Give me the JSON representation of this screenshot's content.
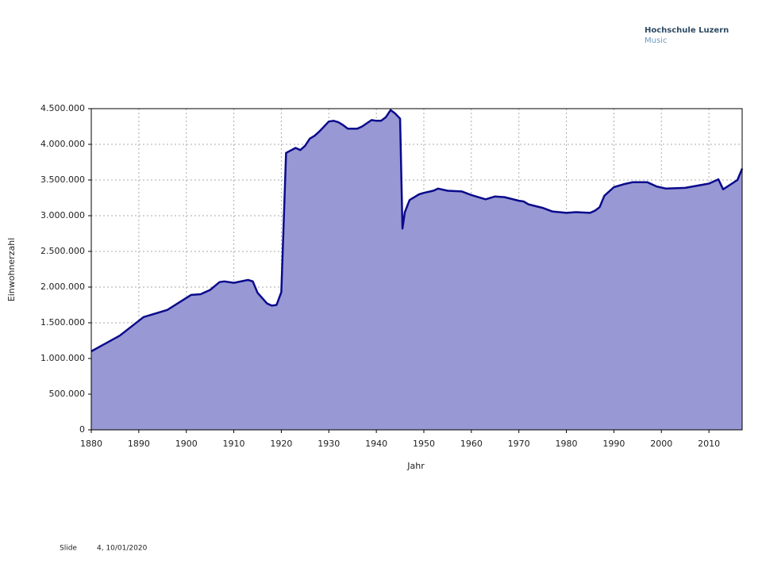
{
  "header": {
    "institution": "Hochschule Luzern",
    "department": "Music"
  },
  "footer": {
    "label": "Slide",
    "info": "4, 10/01/2020"
  },
  "chart_data": {
    "type": "area",
    "xlabel": "Jahr",
    "ylabel": "Einwohnerzahl",
    "x": [
      1880,
      1886,
      1891,
      1896,
      1901,
      1903,
      1905,
      1907,
      1908,
      1910,
      1913,
      1914,
      1915,
      1917,
      1918,
      1919,
      1920,
      1921,
      1923,
      1924,
      1925,
      1926,
      1927,
      1928,
      1930,
      1931,
      1932,
      1933,
      1934,
      1936,
      1937,
      1939,
      1940,
      1941,
      1942,
      1943,
      1944,
      1945,
      1945.5,
      1946,
      1947,
      1949,
      1950,
      1952,
      1953,
      1955,
      1958,
      1960,
      1963,
      1965,
      1967,
      1970,
      1971,
      1972,
      1975,
      1977,
      1980,
      1982,
      1985,
      1986,
      1987,
      1988,
      1990,
      1992,
      1994,
      1997,
      1999,
      2001,
      2005,
      2010,
      2012,
      2013,
      2016,
      2017
    ],
    "values": [
      1100000,
      1320000,
      1580000,
      1680000,
      1890000,
      1900000,
      1960000,
      2070000,
      2080000,
      2060000,
      2100000,
      2080000,
      1920000,
      1770000,
      1740000,
      1750000,
      1930000,
      3880000,
      3950000,
      3920000,
      3980000,
      4080000,
      4120000,
      4180000,
      4320000,
      4330000,
      4310000,
      4270000,
      4220000,
      4220000,
      4250000,
      4340000,
      4330000,
      4330000,
      4380000,
      4480000,
      4430000,
      4360000,
      2820000,
      3050000,
      3220000,
      3300000,
      3320000,
      3350000,
      3380000,
      3350000,
      3340000,
      3290000,
      3230000,
      3270000,
      3260000,
      3210000,
      3200000,
      3160000,
      3110000,
      3060000,
      3040000,
      3050000,
      3040000,
      3070000,
      3120000,
      3280000,
      3400000,
      3440000,
      3470000,
      3470000,
      3410000,
      3380000,
      3390000,
      3450000,
      3510000,
      3370000,
      3500000,
      3660000
    ],
    "fill_color": "#9898d4",
    "line_color": "#0a0a8c",
    "xlim": [
      1880,
      2017
    ],
    "xticks": [
      1880,
      1890,
      1900,
      1910,
      1920,
      1930,
      1940,
      1950,
      1960,
      1970,
      1980,
      1990,
      2000,
      2010
    ],
    "ylim": [
      0,
      4500000
    ],
    "yticks": [
      0,
      {
        "value": 500000,
        "label": "500.000"
      },
      {
        "value": 1000000,
        "label": "1.000.000"
      },
      {
        "value": 1500000,
        "label": "1.500.000"
      },
      {
        "value": 2000000,
        "label": "2.000.000"
      },
      {
        "value": 2500000,
        "label": "2.500.000"
      },
      {
        "value": 3000000,
        "label": "3.000.000"
      },
      {
        "value": 3500000,
        "label": "3.500.000"
      },
      {
        "value": 4000000,
        "label": "4.000.000"
      },
      {
        "value": 4500000,
        "label": "4.500.000"
      }
    ],
    "grid": true
  }
}
